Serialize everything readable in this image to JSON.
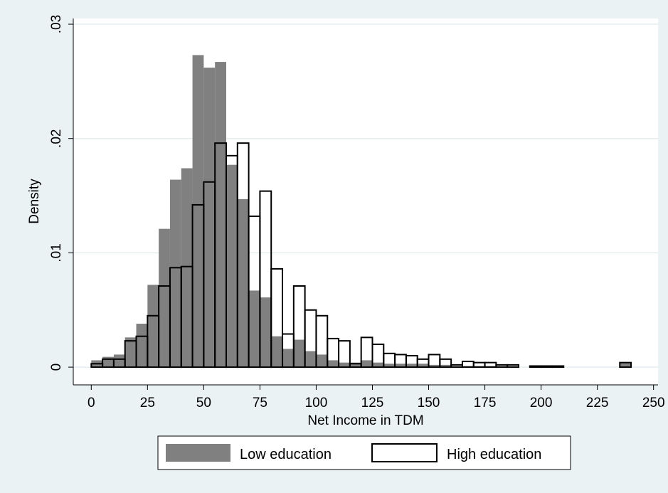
{
  "chart_data": {
    "type": "bar",
    "subtype": "histogram",
    "xlabel": "Net Income in TDM",
    "ylabel": "Density",
    "xlim": [
      -8,
      252
    ],
    "ylim": [
      -0.00155,
      0.0305
    ],
    "bin_width": 5,
    "x_ticks": [
      0,
      25,
      50,
      75,
      100,
      125,
      150,
      175,
      200,
      225,
      250
    ],
    "x_tick_labels": [
      "0",
      "25",
      "50",
      "75",
      "100",
      "125",
      "150",
      "175",
      "200",
      "225",
      "250"
    ],
    "y_ticks": [
      0,
      0.01,
      0.02,
      0.03
    ],
    "y_tick_labels": [
      "0",
      ".01",
      ".02",
      ".03"
    ],
    "grid": "horizontal",
    "legend_position": "bottom",
    "bin_starts": [
      0,
      5,
      10,
      15,
      20,
      25,
      30,
      35,
      40,
      45,
      50,
      55,
      60,
      65,
      70,
      75,
      80,
      85,
      90,
      95,
      100,
      105,
      110,
      115,
      120,
      125,
      130,
      135,
      140,
      145,
      150,
      155,
      160,
      165,
      170,
      175,
      180,
      185,
      190,
      195,
      200,
      205,
      210,
      215,
      220,
      225,
      230,
      235
    ],
    "series": [
      {
        "name": "Low education",
        "fill": "#808080",
        "stroke": "none",
        "values": [
          0.0006,
          0.0009,
          0.0011,
          0.0026,
          0.0038,
          0.0072,
          0.0121,
          0.0164,
          0.0174,
          0.0273,
          0.0262,
          0.0267,
          0.0177,
          0.0147,
          0.0067,
          0.0061,
          0.0027,
          0.0016,
          0.0024,
          0.0014,
          0.0011,
          0.0006,
          0.0004,
          0.0004,
          0.0006,
          0.0004,
          0.0003,
          0.0003,
          0.0003,
          0.0003,
          0.0002,
          0.0002,
          0.0001,
          0.0001,
          0.0001,
          0.0001,
          0.0001,
          0.0001,
          0,
          0.0001,
          0.0001,
          0,
          0,
          0,
          0,
          0,
          0,
          0.0004
        ]
      },
      {
        "name": "High education",
        "fill": "none",
        "stroke": "#000000",
        "values": [
          0.0003,
          0.0007,
          0.0007,
          0.0023,
          0.0027,
          0.0045,
          0.0071,
          0.0087,
          0.0088,
          0.0142,
          0.0162,
          0.0196,
          0.0185,
          0.0196,
          0.0132,
          0.0154,
          0.0086,
          0.0029,
          0.0071,
          0.005,
          0.0045,
          0.0025,
          0.0023,
          0.0003,
          0.0026,
          0.002,
          0.0012,
          0.0011,
          0.001,
          0.0007,
          0.0011,
          0.0007,
          0.0002,
          0.0005,
          0.0004,
          0.0004,
          0.0002,
          0.0002,
          0,
          0.0001,
          0.0001,
          0.0001,
          0,
          0,
          0,
          0,
          0,
          0.0004
        ]
      }
    ]
  }
}
